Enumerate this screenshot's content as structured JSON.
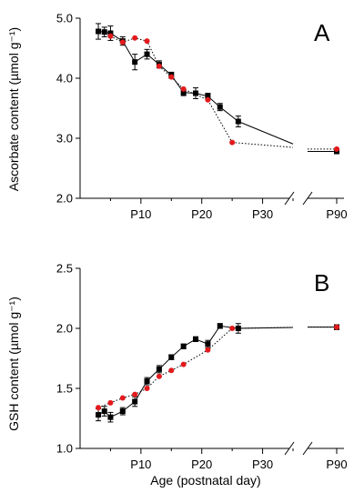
{
  "chart_data": [
    {
      "type": "line",
      "panel_label": "A",
      "ylabel": "Ascorbate content (µmol g⁻¹)",
      "xlabel": "",
      "ylim": [
        2.0,
        5.0
      ],
      "yticks": [
        "2.0",
        "3.0",
        "4.0",
        "5.0"
      ],
      "xticks": [
        "P10",
        "P20",
        "P30",
        "P90"
      ],
      "axis_break": true,
      "series": [
        {
          "color": "#000000",
          "marker": "square",
          "line": "solid",
          "points": [
            {
              "x": 3,
              "y": 4.78,
              "err": 0.13
            },
            {
              "x": 4,
              "y": 4.77,
              "err": 0.08
            },
            {
              "x": 5,
              "y": 4.75,
              "err": 0.12
            },
            {
              "x": 7,
              "y": 4.62,
              "err": 0.07
            },
            {
              "x": 9,
              "y": 4.27,
              "err": 0.13
            },
            {
              "x": 11,
              "y": 4.4,
              "err": 0.08
            },
            {
              "x": 13,
              "y": 4.23,
              "err": 0.06
            },
            {
              "x": 15,
              "y": 4.05,
              "err": 0.05
            },
            {
              "x": 17,
              "y": 3.76,
              "err": 0.05
            },
            {
              "x": 19,
              "y": 3.75,
              "err": 0.09
            },
            {
              "x": 21,
              "y": 3.7,
              "err": 0.05
            },
            {
              "x": 23,
              "y": 3.52,
              "err": 0.06
            },
            {
              "x": 26,
              "y": 3.28,
              "err": 0.09
            },
            {
              "x": 90,
              "y": 2.78,
              "err": 0.03
            }
          ]
        },
        {
          "color": "#e31a1c",
          "marker": "circle",
          "line": "dotted",
          "points": [
            {
              "x": 5,
              "y": 4.7
            },
            {
              "x": 7,
              "y": 4.6
            },
            {
              "x": 9,
              "y": 4.67
            },
            {
              "x": 11,
              "y": 4.62
            },
            {
              "x": 13,
              "y": 4.2
            },
            {
              "x": 15,
              "y": 4.02
            },
            {
              "x": 17,
              "y": 3.82
            },
            {
              "x": 21,
              "y": 3.64
            },
            {
              "x": 25,
              "y": 2.93
            },
            {
              "x": 90,
              "y": 2.82
            }
          ]
        }
      ]
    },
    {
      "type": "line",
      "panel_label": "B",
      "ylabel": "GSH content (µmol g⁻¹)",
      "xlabel": "Age (postnatal day)",
      "ylim": [
        1.0,
        2.5
      ],
      "yticks": [
        "1.0",
        "1.5",
        "2.0",
        "2.5"
      ],
      "xticks": [
        "P10",
        "P20",
        "P30",
        "P90"
      ],
      "axis_break": true,
      "series": [
        {
          "color": "#000000",
          "marker": "square",
          "line": "solid",
          "points": [
            {
              "x": 3,
              "y": 1.28,
              "err": 0.05
            },
            {
              "x": 4,
              "y": 1.31,
              "err": 0.04
            },
            {
              "x": 5,
              "y": 1.26,
              "err": 0.04
            },
            {
              "x": 7,
              "y": 1.31,
              "err": 0.03
            },
            {
              "x": 9,
              "y": 1.39,
              "err": 0.04
            },
            {
              "x": 11,
              "y": 1.56,
              "err": 0.03
            },
            {
              "x": 13,
              "y": 1.66,
              "err": 0.03
            },
            {
              "x": 15,
              "y": 1.76,
              "err": 0.02
            },
            {
              "x": 17,
              "y": 1.85,
              "err": 0.02
            },
            {
              "x": 19,
              "y": 1.91,
              "err": 0.02
            },
            {
              "x": 21,
              "y": 1.87,
              "err": 0.03
            },
            {
              "x": 23,
              "y": 2.02,
              "err": 0.02
            },
            {
              "x": 26,
              "y": 2.0,
              "err": 0.04
            },
            {
              "x": 90,
              "y": 2.01,
              "err": 0.02
            }
          ]
        },
        {
          "color": "#e31a1c",
          "marker": "circle",
          "line": "dotted",
          "points": [
            {
              "x": 3,
              "y": 1.34
            },
            {
              "x": 5,
              "y": 1.38
            },
            {
              "x": 7,
              "y": 1.42
            },
            {
              "x": 9,
              "y": 1.45
            },
            {
              "x": 11,
              "y": 1.5
            },
            {
              "x": 13,
              "y": 1.6
            },
            {
              "x": 15,
              "y": 1.65
            },
            {
              "x": 17,
              "y": 1.7
            },
            {
              "x": 21,
              "y": 1.82
            },
            {
              "x": 25,
              "y": 2.0
            },
            {
              "x": 90,
              "y": 2.01
            }
          ]
        }
      ]
    }
  ]
}
